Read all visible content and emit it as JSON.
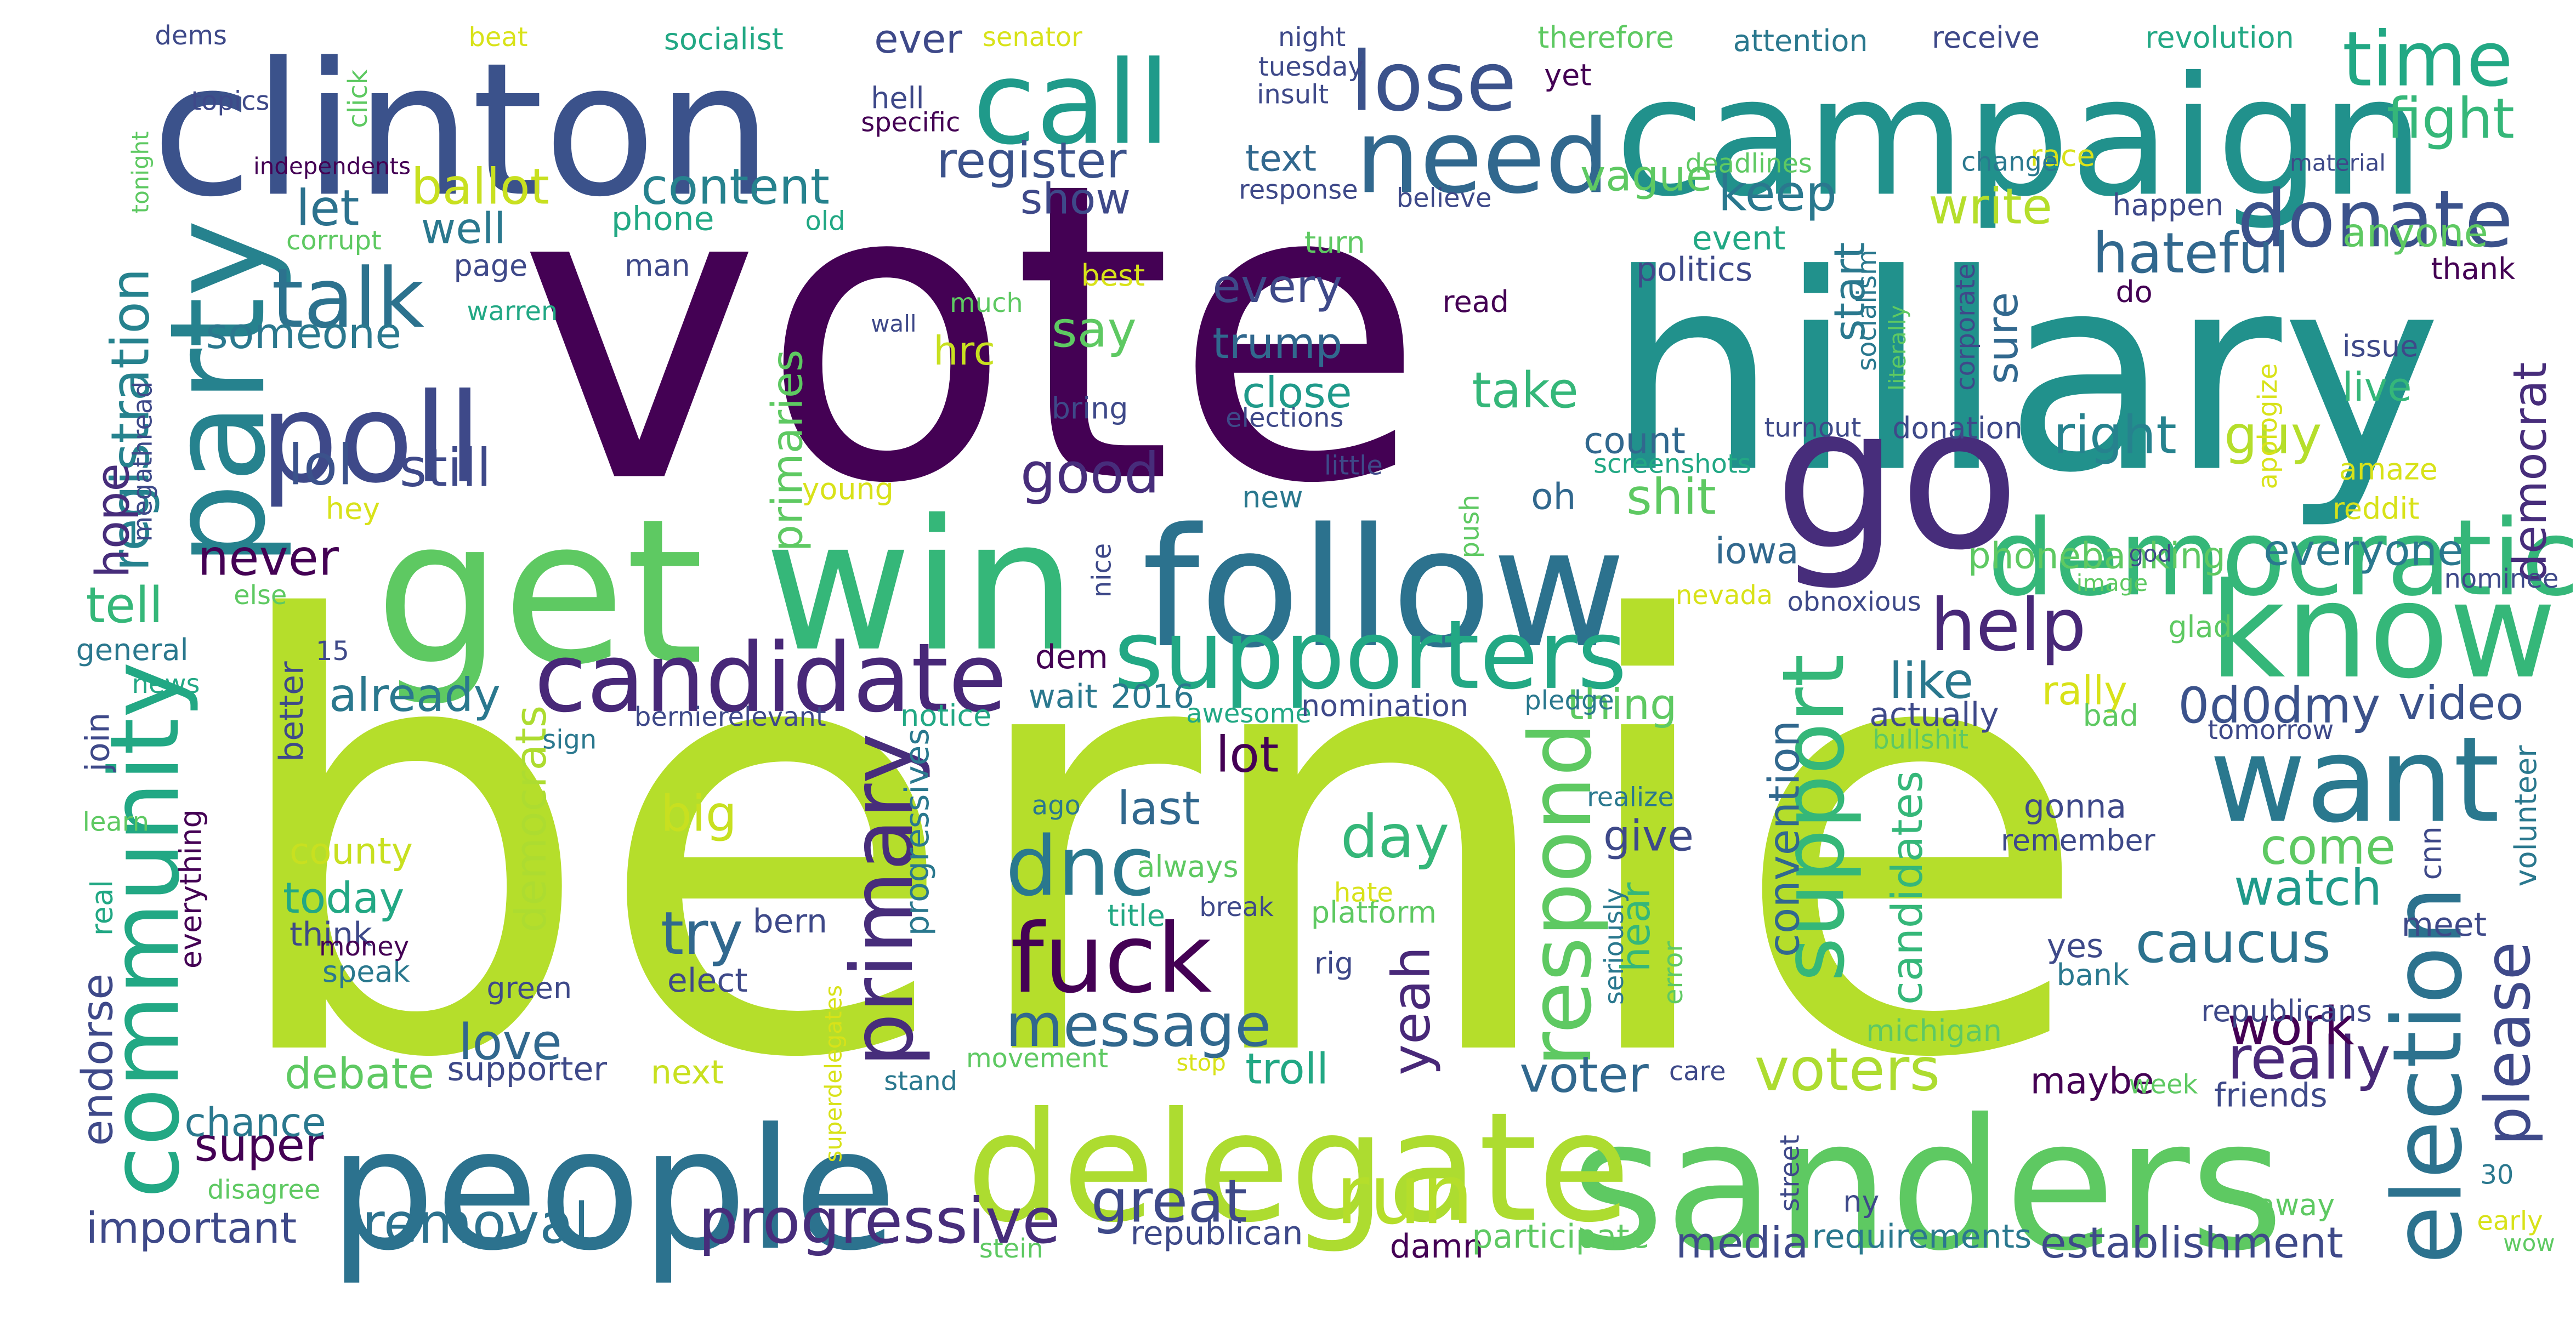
{
  "colors": {
    "background": "#ffffff",
    "palette": "viridis",
    "dark_purple": "#440154",
    "lime": "#b5de2b"
  },
  "words": [
    {
      "text": "bernie",
      "color": "#b5de2b"
    },
    {
      "text": "vote",
      "color": "#440154"
    },
    {
      "text": "hillary",
      "color": "#21918c"
    },
    {
      "text": "clinton",
      "color": "#3b528b"
    },
    {
      "text": "campaign",
      "color": "#21918c"
    },
    {
      "text": "get",
      "color": "#5ec962"
    },
    {
      "text": "win",
      "color": "#35b779"
    },
    {
      "text": "follow",
      "color": "#2c728e"
    },
    {
      "text": "go",
      "color": "#472d7b"
    },
    {
      "text": "sanders",
      "color": "#5ec962"
    },
    {
      "text": "people",
      "color": "#2c728e"
    },
    {
      "text": "know",
      "color": "#35b779"
    },
    {
      "text": "delegate",
      "color": "#addc30"
    },
    {
      "text": "poll",
      "color": "#3e4989"
    },
    {
      "text": "call",
      "color": "#1f9a8a"
    },
    {
      "text": "party",
      "color": "#26828e"
    },
    {
      "text": "need",
      "color": "#31688e"
    },
    {
      "text": "democratic",
      "color": "#35b779"
    },
    {
      "text": "want",
      "color": "#2a788e"
    },
    {
      "text": "supporters",
      "color": "#22a884"
    },
    {
      "text": "candidate",
      "color": "#482878"
    },
    {
      "text": "community",
      "color": "#22a884"
    },
    {
      "text": "fuck",
      "color": "#440154"
    },
    {
      "text": "donate",
      "color": "#3b528b"
    },
    {
      "text": "election",
      "color": "#2c728e"
    },
    {
      "text": "support",
      "color": "#35b779"
    },
    {
      "text": "primary",
      "color": "#472d7b"
    },
    {
      "text": "respond",
      "color": "#5ec962"
    },
    {
      "text": "lose",
      "color": "#3b528b"
    },
    {
      "text": "time",
      "color": "#22a884"
    },
    {
      "text": "talk",
      "color": "#2c728e"
    },
    {
      "text": "run",
      "color": "#b5de2b"
    },
    {
      "text": "help",
      "color": "#482878"
    },
    {
      "text": "dnc",
      "color": "#2a788e"
    },
    {
      "text": "message",
      "color": "#31688e"
    },
    {
      "text": "progressive",
      "color": "#472d7b"
    },
    {
      "text": "removal",
      "color": "#2c728e"
    },
    {
      "text": "great",
      "color": "#3e4989"
    },
    {
      "text": "fight",
      "color": "#35b779"
    },
    {
      "text": "registration",
      "color": "#26828e"
    },
    {
      "text": "ballot",
      "color": "#c8e020"
    },
    {
      "text": "content",
      "color": "#26828e"
    },
    {
      "text": "register",
      "color": "#3b528b"
    },
    {
      "text": "keep",
      "color": "#2a788e"
    },
    {
      "text": "write",
      "color": "#b5de2b"
    },
    {
      "text": "hateful",
      "color": "#31688e"
    },
    {
      "text": "caucus",
      "color": "#2c728e"
    },
    {
      "text": "watch",
      "color": "#1f9a8a"
    },
    {
      "text": "come",
      "color": "#5ec962"
    },
    {
      "text": "please",
      "color": "#3e4989"
    },
    {
      "text": "really",
      "color": "#482878"
    },
    {
      "text": "work",
      "color": "#440154"
    },
    {
      "text": "video",
      "color": "#3b528b"
    },
    {
      "text": "0d0dmy",
      "color": "#3b528b"
    },
    {
      "text": "like",
      "color": "#2a788e"
    },
    {
      "text": "rally",
      "color": "#d8e219"
    },
    {
      "text": "voters",
      "color": "#addc30"
    },
    {
      "text": "voter",
      "color": "#31688e"
    },
    {
      "text": "yeah",
      "color": "#482878"
    },
    {
      "text": "day",
      "color": "#35b779"
    },
    {
      "text": "try",
      "color": "#31688e"
    },
    {
      "text": "love",
      "color": "#31688e"
    },
    {
      "text": "super",
      "color": "#440154"
    },
    {
      "text": "chance",
      "color": "#2a788e"
    },
    {
      "text": "debate",
      "color": "#5ec962"
    },
    {
      "text": "important",
      "color": "#3e4989"
    },
    {
      "text": "establishment",
      "color": "#3e4989"
    },
    {
      "text": "media",
      "color": "#3e4989"
    },
    {
      "text": "trump",
      "color": "#31688e"
    },
    {
      "text": "take",
      "color": "#35b779"
    },
    {
      "text": "close",
      "color": "#1f9a8a"
    },
    {
      "text": "every",
      "color": "#3e4989"
    },
    {
      "text": "say",
      "color": "#5ec962"
    },
    {
      "text": "good",
      "color": "#472d7b"
    },
    {
      "text": "lol",
      "color": "#3b528b"
    },
    {
      "text": "still",
      "color": "#3e4989"
    },
    {
      "text": "someone",
      "color": "#2a788e"
    },
    {
      "text": "let",
      "color": "#2c728e"
    },
    {
      "text": "well",
      "color": "#2a788e"
    },
    {
      "text": "text",
      "color": "#31688e"
    },
    {
      "text": "vague",
      "color": "#5ec962"
    },
    {
      "text": "show",
      "color": "#3e4989"
    },
    {
      "text": "right",
      "color": "#26828e"
    },
    {
      "text": "guy",
      "color": "#b5de2b"
    },
    {
      "text": "shit",
      "color": "#5ec962"
    },
    {
      "text": "count",
      "color": "#31688e"
    },
    {
      "text": "oh",
      "color": "#31688e"
    },
    {
      "text": "everyone",
      "color": "#2a788e"
    },
    {
      "text": "democrat",
      "color": "#472d7b"
    },
    {
      "text": "anyone",
      "color": "#5ec962"
    },
    {
      "text": "live",
      "color": "#35b779"
    },
    {
      "text": "hope",
      "color": "#472d7b"
    },
    {
      "text": "tell",
      "color": "#35b779"
    },
    {
      "text": "never",
      "color": "#440154"
    },
    {
      "text": "already",
      "color": "#2a788e"
    },
    {
      "text": "big",
      "color": "#c8e020"
    },
    {
      "text": "lot",
      "color": "#440154"
    },
    {
      "text": "last",
      "color": "#31688e"
    },
    {
      "text": "today",
      "color": "#22a884"
    },
    {
      "text": "county",
      "color": "#c8e020"
    },
    {
      "text": "democrats",
      "color": "#addc30"
    },
    {
      "text": "convention",
      "color": "#31688e"
    },
    {
      "text": "give",
      "color": "#3e4989"
    },
    {
      "text": "hear",
      "color": "#35b779"
    },
    {
      "text": "candidates",
      "color": "#35b779"
    },
    {
      "text": "start",
      "color": "#2a788e"
    },
    {
      "text": "sure",
      "color": "#31688e"
    },
    {
      "text": "thing",
      "color": "#5ec962"
    },
    {
      "text": "troll",
      "color": "#22a884"
    },
    {
      "text": "maybe",
      "color": "#440154"
    },
    {
      "text": "friends",
      "color": "#3e4989"
    },
    {
      "text": "meet",
      "color": "#3e4989"
    },
    {
      "text": "endorse",
      "color": "#3e4989"
    },
    {
      "text": "next",
      "color": "#c8e020"
    },
    {
      "text": "supporter",
      "color": "#3e4989"
    },
    {
      "text": "republican",
      "color": "#3e4989"
    },
    {
      "text": "damn",
      "color": "#440154"
    },
    {
      "text": "participate",
      "color": "#5ec962"
    },
    {
      "text": "requirements",
      "color": "#2a788e"
    },
    {
      "text": "think",
      "color": "#3e4989"
    },
    {
      "text": "bern",
      "color": "#3e4989"
    },
    {
      "text": "elect",
      "color": "#3e4989"
    },
    {
      "text": "speak",
      "color": "#2a788e"
    },
    {
      "text": "green",
      "color": "#3e4989"
    },
    {
      "text": "hrc",
      "color": "#c8e020"
    },
    {
      "text": "primaries",
      "color": "#5ec962"
    },
    {
      "text": "progressives",
      "color": "#2a788e"
    },
    {
      "text": "superdelegates",
      "color": "#d8e219"
    },
    {
      "text": "iowa",
      "color": "#31688e"
    },
    {
      "text": "phonebanking",
      "color": "#5ec962"
    },
    {
      "text": "dem",
      "color": "#440154"
    },
    {
      "text": "wait",
      "color": "#2a788e"
    },
    {
      "text": "2016",
      "color": "#2a788e"
    },
    {
      "text": "awesome",
      "color": "#22a884"
    },
    {
      "text": "nomination",
      "color": "#3e4989"
    },
    {
      "text": "pledge",
      "color": "#2a788e"
    },
    {
      "text": "actually",
      "color": "#3e4989"
    },
    {
      "text": "bullshit",
      "color": "#5ec962"
    },
    {
      "text": "tomorrow",
      "color": "#3e4989"
    },
    {
      "text": "bad",
      "color": "#5ec962"
    },
    {
      "text": "notice",
      "color": "#22a884"
    },
    {
      "text": "bernierelevant",
      "color": "#3e4989"
    },
    {
      "text": "sign",
      "color": "#2a788e"
    },
    {
      "text": "join",
      "color": "#3e4989"
    },
    {
      "text": "learn",
      "color": "#5ec962"
    },
    {
      "text": "money",
      "color": "#440154"
    },
    {
      "text": "real",
      "color": "#22a884"
    },
    {
      "text": "everything",
      "color": "#440154"
    },
    {
      "text": "disagree",
      "color": "#5ec962"
    },
    {
      "text": "stein",
      "color": "#5ec962"
    },
    {
      "text": "stand",
      "color": "#2a788e"
    },
    {
      "text": "movement",
      "color": "#5ec962"
    },
    {
      "text": "stop",
      "color": "#d8e219"
    },
    {
      "text": "care",
      "color": "#3e4989"
    },
    {
      "text": "week",
      "color": "#5ec962"
    },
    {
      "text": "street",
      "color": "#3e4989"
    },
    {
      "text": "ny",
      "color": "#3e4989"
    },
    {
      "text": "away",
      "color": "#5ec962"
    },
    {
      "text": "30",
      "color": "#2a788e"
    },
    {
      "text": "early",
      "color": "#d8e219"
    },
    {
      "text": "wow",
      "color": "#5ec962"
    },
    {
      "text": "michigan",
      "color": "#5ec962"
    },
    {
      "text": "republicans",
      "color": "#3e4989"
    },
    {
      "text": "bank",
      "color": "#2a788e"
    },
    {
      "text": "yes",
      "color": "#3e4989"
    },
    {
      "text": "rig",
      "color": "#3e4989"
    },
    {
      "text": "seriously",
      "color": "#2a788e"
    },
    {
      "text": "error",
      "color": "#5ec962"
    },
    {
      "text": "platform",
      "color": "#5ec962"
    },
    {
      "text": "hate",
      "color": "#d8e219"
    },
    {
      "text": "break",
      "color": "#3e4989"
    },
    {
      "text": "always",
      "color": "#5ec962"
    },
    {
      "text": "title",
      "color": "#22a884"
    },
    {
      "text": "ago",
      "color": "#2a788e"
    },
    {
      "text": "realize",
      "color": "#2a788e"
    },
    {
      "text": "gonna",
      "color": "#3e4989"
    },
    {
      "text": "remember",
      "color": "#3e4989"
    },
    {
      "text": "cnn",
      "color": "#3e4989"
    },
    {
      "text": "volunteer",
      "color": "#2a788e"
    },
    {
      "text": "general",
      "color": "#2a788e"
    },
    {
      "text": "news",
      "color": "#22a884"
    },
    {
      "text": "15",
      "color": "#3e4989"
    },
    {
      "text": "better",
      "color": "#3e4989"
    },
    {
      "text": "else",
      "color": "#5ec962"
    },
    {
      "text": "nice",
      "color": "#3e4989"
    },
    {
      "text": "young",
      "color": "#d8e219"
    },
    {
      "text": "hey",
      "color": "#d8e219"
    },
    {
      "text": "megathread",
      "color": "#3e4989"
    },
    {
      "text": "push",
      "color": "#5ec962"
    },
    {
      "text": "nevada",
      "color": "#d8e219"
    },
    {
      "text": "obnoxious",
      "color": "#3e4989"
    },
    {
      "text": "image",
      "color": "#5ec962"
    },
    {
      "text": "god",
      "color": "#3e4989"
    },
    {
      "text": "glad",
      "color": "#5ec962"
    },
    {
      "text": "nominee",
      "color": "#3e4989"
    },
    {
      "text": "reddit",
      "color": "#d8e219"
    },
    {
      "text": "amaze",
      "color": "#d8e219"
    },
    {
      "text": "apologize",
      "color": "#d8e219"
    },
    {
      "text": "issue",
      "color": "#3e4989"
    },
    {
      "text": "thank",
      "color": "#440154"
    },
    {
      "text": "do",
      "color": "#440154"
    },
    {
      "text": "happen",
      "color": "#3e4989"
    },
    {
      "text": "material",
      "color": "#3e4989"
    },
    {
      "text": "race",
      "color": "#d8e219"
    },
    {
      "text": "change",
      "color": "#2a788e"
    },
    {
      "text": "deadlines",
      "color": "#5ec962"
    },
    {
      "text": "event",
      "color": "#22a884"
    },
    {
      "text": "politics",
      "color": "#3e4989"
    },
    {
      "text": "socialism",
      "color": "#2a788e"
    },
    {
      "text": "literally",
      "color": "#5ec962"
    },
    {
      "text": "corporate",
      "color": "#3e4989"
    },
    {
      "text": "turnout",
      "color": "#3e4989"
    },
    {
      "text": "donation",
      "color": "#3e4989"
    },
    {
      "text": "screenshots",
      "color": "#22a884"
    },
    {
      "text": "little",
      "color": "#3e4989"
    },
    {
      "text": "elections",
      "color": "#3e4989"
    },
    {
      "text": "new",
      "color": "#2a788e"
    },
    {
      "text": "read",
      "color": "#440154"
    },
    {
      "text": "turn",
      "color": "#5ec962"
    },
    {
      "text": "believe",
      "color": "#3e4989"
    },
    {
      "text": "response",
      "color": "#3e4989"
    },
    {
      "text": "insult",
      "color": "#3e4989"
    },
    {
      "text": "tuesday",
      "color": "#3e4989"
    },
    {
      "text": "night",
      "color": "#3e4989"
    },
    {
      "text": "senator",
      "color": "#d8e219"
    },
    {
      "text": "yet",
      "color": "#440154"
    },
    {
      "text": "therefore",
      "color": "#5ec962"
    },
    {
      "text": "attention",
      "color": "#2a788e"
    },
    {
      "text": "receive",
      "color": "#3e4989"
    },
    {
      "text": "revolution",
      "color": "#22a884"
    },
    {
      "text": "ever",
      "color": "#3e4989"
    },
    {
      "text": "socialist",
      "color": "#22a884"
    },
    {
      "text": "beat",
      "color": "#d8e219"
    },
    {
      "text": "dems",
      "color": "#3e4989"
    },
    {
      "text": "topics",
      "color": "#3e4989"
    },
    {
      "text": "click",
      "color": "#5ec962"
    },
    {
      "text": "hell",
      "color": "#3e4989"
    },
    {
      "text": "specific",
      "color": "#440154"
    },
    {
      "text": "independents",
      "color": "#440154"
    },
    {
      "text": "tonight",
      "color": "#5ec962"
    },
    {
      "text": "corrupt",
      "color": "#5ec962"
    },
    {
      "text": "warren",
      "color": "#22a884"
    },
    {
      "text": "phone",
      "color": "#22a884"
    },
    {
      "text": "page",
      "color": "#3e4989"
    },
    {
      "text": "man",
      "color": "#3e4989"
    },
    {
      "text": "old",
      "color": "#22a884"
    },
    {
      "text": "best",
      "color": "#d8e219"
    },
    {
      "text": "much",
      "color": "#5ec962"
    },
    {
      "text": "wall",
      "color": "#3e4989"
    },
    {
      "text": "bring",
      "color": "#3e4989"
    }
  ]
}
